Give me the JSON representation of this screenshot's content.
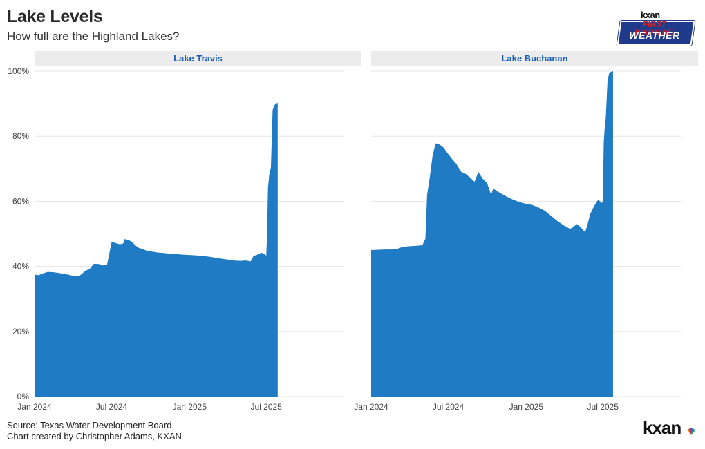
{
  "header": {
    "title": "Lake Levels",
    "subtitle": "How full are the Highland Lakes?"
  },
  "logo_top": {
    "small_text": "kxan",
    "line1": "FIRST WARNING",
    "line2": "WEATHER",
    "colors": {
      "badge": "#1f3a8a",
      "line1": "#d3202a",
      "line2": "#ffffff"
    }
  },
  "footer": {
    "source": "Source: Texas Water Development Board",
    "credit": "Chart created by Christopher Adams, KXAN",
    "logo_text": "kxan",
    "logo_icon": "peacock-icon"
  },
  "colors": {
    "fill": "#1e7bc4",
    "strip": "#ececec",
    "strip_text": "#1a5fb4",
    "grid": "#e6e6e6"
  },
  "chart_data": {
    "type": "area",
    "ylim": [
      0,
      100
    ],
    "yticks": [
      0,
      20,
      40,
      60,
      80,
      100
    ],
    "ytick_labels": [
      "0%",
      "20%",
      "40%",
      "60%",
      "80%",
      "100%"
    ],
    "xlim": [
      "2024-01-01",
      "2026-01-01"
    ],
    "xticks": [
      "2024-01-01",
      "2024-07-01",
      "2025-01-01",
      "2025-07-01"
    ],
    "xtick_labels": [
      "Jan 2024",
      "Jul 2024",
      "Jan 2025",
      "Jul 2025"
    ],
    "grid": true,
    "panels": [
      {
        "name": "Lake Travis",
        "x": [
          "2024-01-01",
          "2024-01-10",
          "2024-01-20",
          "2024-02-01",
          "2024-02-15",
          "2024-03-01",
          "2024-03-15",
          "2024-04-01",
          "2024-04-15",
          "2024-05-01",
          "2024-05-10",
          "2024-05-20",
          "2024-06-01",
          "2024-06-10",
          "2024-06-20",
          "2024-07-01",
          "2024-07-10",
          "2024-07-20",
          "2024-07-28",
          "2024-08-01",
          "2024-08-15",
          "2024-09-01",
          "2024-09-10",
          "2024-09-20",
          "2024-10-01",
          "2024-10-15",
          "2024-11-01",
          "2024-11-15",
          "2024-12-01",
          "2024-12-15",
          "2025-01-01",
          "2025-01-15",
          "2025-02-01",
          "2025-02-15",
          "2025-03-01",
          "2025-03-15",
          "2025-04-01",
          "2025-04-15",
          "2025-05-01",
          "2025-05-15",
          "2025-05-25",
          "2025-06-01",
          "2025-06-10",
          "2025-06-20",
          "2025-06-28",
          "2025-07-01",
          "2025-07-03",
          "2025-07-05",
          "2025-07-08",
          "2025-07-12",
          "2025-07-16",
          "2025-07-20",
          "2025-07-24",
          "2025-07-28"
        ],
        "y": [
          37.5,
          37.3,
          37.8,
          38.3,
          38.2,
          37.9,
          37.6,
          37.1,
          37.0,
          38.7,
          39.2,
          40.8,
          40.7,
          40.3,
          40.4,
          47.5,
          47.2,
          46.8,
          47.0,
          48.4,
          47.8,
          45.8,
          45.4,
          44.9,
          44.6,
          44.3,
          44.1,
          43.9,
          43.8,
          43.6,
          43.5,
          43.4,
          43.2,
          43.0,
          42.7,
          42.4,
          42.1,
          41.8,
          41.7,
          41.8,
          41.5,
          43.2,
          43.6,
          44.2,
          43.8,
          43.2,
          50.0,
          64.0,
          68.0,
          70.5,
          88.0,
          89.5,
          90.0,
          90.3
        ]
      },
      {
        "name": "Lake Buchanan",
        "x": [
          "2024-01-01",
          "2024-01-15",
          "2024-02-01",
          "2024-02-15",
          "2024-03-01",
          "2024-03-15",
          "2024-04-01",
          "2024-04-15",
          "2024-05-01",
          "2024-05-08",
          "2024-05-12",
          "2024-05-18",
          "2024-05-25",
          "2024-06-01",
          "2024-06-10",
          "2024-06-20",
          "2024-07-01",
          "2024-07-10",
          "2024-07-20",
          "2024-08-01",
          "2024-08-10",
          "2024-08-20",
          "2024-09-01",
          "2024-09-10",
          "2024-09-15",
          "2024-09-20",
          "2024-10-01",
          "2024-10-10",
          "2024-10-15",
          "2024-10-20",
          "2024-11-01",
          "2024-11-15",
          "2024-12-01",
          "2024-12-15",
          "2025-01-01",
          "2025-01-15",
          "2025-02-01",
          "2025-02-15",
          "2025-03-01",
          "2025-03-15",
          "2025-04-01",
          "2025-04-15",
          "2025-05-01",
          "2025-05-10",
          "2025-05-20",
          "2025-05-25",
          "2025-06-01",
          "2025-06-10",
          "2025-06-20",
          "2025-06-28",
          "2025-07-01",
          "2025-07-03",
          "2025-07-05",
          "2025-07-08",
          "2025-07-12",
          "2025-07-16",
          "2025-07-20",
          "2025-07-25"
        ],
        "y": [
          45.0,
          45.1,
          45.2,
          45.2,
          45.3,
          46.0,
          46.2,
          46.3,
          46.5,
          48.5,
          62.0,
          67.0,
          74.0,
          77.8,
          77.5,
          76.5,
          74.5,
          73.0,
          71.5,
          69.0,
          68.5,
          67.5,
          66.0,
          69.0,
          68.0,
          67.0,
          65.5,
          62.0,
          63.8,
          63.5,
          62.5,
          61.5,
          60.5,
          59.8,
          59.2,
          58.9,
          58.0,
          57.0,
          55.5,
          54.0,
          52.5,
          51.5,
          53.0,
          52.0,
          50.5,
          52.5,
          56.0,
          58.5,
          60.5,
          59.5,
          59.8,
          78.0,
          82.0,
          86.0,
          97.0,
          99.5,
          99.8,
          100.0
        ]
      }
    ]
  }
}
